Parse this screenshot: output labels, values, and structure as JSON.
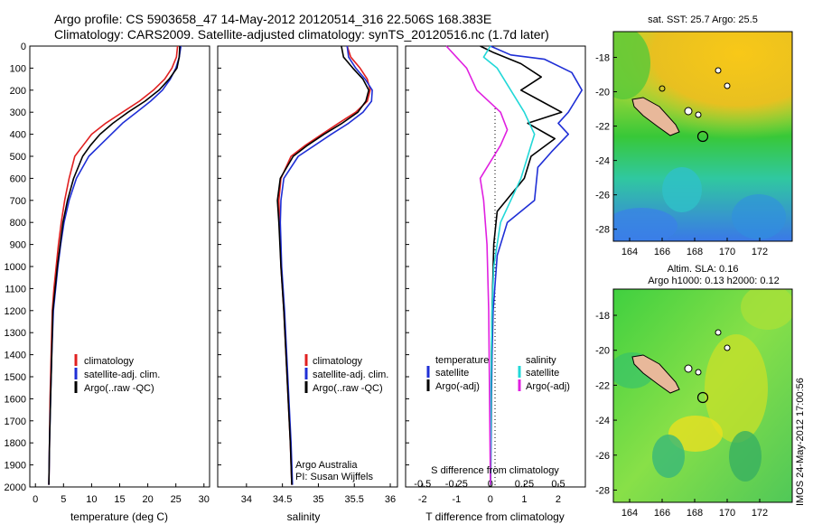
{
  "header": {
    "line1": "Argo profile: CS 5903658_47 14-May-2012 20120514_316 22.506S 168.383E",
    "line2": "Climatology: CARS2009. Satellite-adjusted climatology: synTS_20120516.nc (1.7d later)"
  },
  "colors": {
    "climatology": "#e02020",
    "satellite": "#1f2fd6",
    "argo": "#000000",
    "sal_sat": "#22d8d8",
    "sal_argo": "#e020e0",
    "land": "#e8b89a"
  },
  "side_stamp": "IMOS 24-May-2012 17:00:56",
  "chart_data": [
    {
      "type": "line",
      "title": "",
      "xlabel": "temperature (deg C)",
      "ylabel": "",
      "xlim": [
        -1,
        31
      ],
      "ylim": [
        2000,
        0
      ],
      "x_ticks": [
        "0",
        "5",
        "10",
        "15",
        "20",
        "25",
        "30"
      ],
      "y_ticks": [
        "0",
        "100",
        "200",
        "300",
        "400",
        "500",
        "600",
        "700",
        "800",
        "900",
        "1000",
        "1100",
        "1200",
        "1300",
        "1400",
        "1500",
        "1600",
        "1700",
        "1800",
        "1900",
        "2000"
      ],
      "legend": [
        "climatology",
        "satellite-adj. clim.",
        "Argo(..raw -QC)"
      ],
      "series": [
        {
          "name": "climatology",
          "color": "climatology",
          "x": [
            25.3,
            25.1,
            24.3,
            23.0,
            21.0,
            18.5,
            15.5,
            12.5,
            10.0,
            8.5,
            7.0,
            6.0,
            5.2,
            4.6,
            4.1,
            3.7,
            3.3,
            3.0,
            2.8,
            2.6,
            2.5,
            2.4
          ],
          "y": [
            0,
            50,
            100,
            150,
            200,
            250,
            300,
            350,
            400,
            450,
            500,
            600,
            700,
            800,
            900,
            1000,
            1100,
            1200,
            1400,
            1600,
            1800,
            1990
          ]
        },
        {
          "name": "satellite-adj. clim.",
          "color": "satellite",
          "x": [
            25.9,
            25.6,
            25.0,
            24.0,
            22.6,
            20.5,
            18.0,
            15.5,
            13.5,
            11.5,
            9.5,
            7.3,
            6.0,
            5.1,
            4.5,
            4.0,
            3.6,
            3.2,
            2.9,
            2.7,
            2.5,
            2.4
          ],
          "y": [
            0,
            50,
            100,
            150,
            200,
            250,
            300,
            350,
            400,
            450,
            500,
            600,
            700,
            800,
            900,
            1000,
            1100,
            1200,
            1400,
            1600,
            1800,
            1990
          ]
        },
        {
          "name": "Argo(..raw -QC)",
          "color": "argo",
          "x": [
            25.7,
            25.6,
            25.2,
            23.8,
            22.0,
            19.5,
            16.5,
            13.8,
            11.5,
            9.8,
            8.4,
            6.8,
            5.7,
            4.9,
            4.4,
            3.9,
            3.5,
            3.1,
            2.9,
            2.7,
            2.5,
            2.4
          ],
          "y": [
            0,
            50,
            100,
            150,
            200,
            250,
            300,
            350,
            400,
            450,
            500,
            600,
            700,
            800,
            900,
            1000,
            1100,
            1200,
            1400,
            1600,
            1800,
            1990
          ]
        }
      ]
    },
    {
      "type": "line",
      "title": "",
      "xlabel": "salinity",
      "ylabel": "",
      "xlim": [
        33.6,
        36.1
      ],
      "ylim": [
        2000,
        0
      ],
      "x_ticks": [
        "34",
        "34.5",
        "35",
        "35.5",
        "36"
      ],
      "legend": [
        "climatology",
        "satellite-adj. clim.",
        "Argo(..raw -QC)"
      ],
      "annotation": [
        "Argo Australia",
        "PI: Susan Wijffels"
      ],
      "series": [
        {
          "name": "climatology",
          "color": "climatology",
          "x": [
            35.4,
            35.45,
            35.58,
            35.68,
            35.72,
            35.68,
            35.52,
            35.28,
            35.05,
            34.82,
            34.62,
            34.48,
            34.45,
            34.46,
            34.48,
            34.52,
            34.55,
            34.58,
            34.61,
            34.63
          ],
          "y": [
            0,
            50,
            100,
            150,
            200,
            250,
            300,
            350,
            400,
            450,
            500,
            600,
            700,
            800,
            1000,
            1200,
            1400,
            1600,
            1800,
            1990
          ]
        },
        {
          "name": "satellite-adj. clim.",
          "color": "satellite",
          "x": [
            35.4,
            35.42,
            35.52,
            35.65,
            35.75,
            35.74,
            35.62,
            35.42,
            35.18,
            34.95,
            34.72,
            34.52,
            34.48,
            34.47,
            34.49,
            34.53,
            34.56,
            34.59,
            34.62,
            34.64
          ],
          "y": [
            0,
            50,
            100,
            150,
            200,
            250,
            300,
            350,
            400,
            450,
            500,
            600,
            700,
            800,
            1000,
            1200,
            1400,
            1600,
            1800,
            1990
          ]
        },
        {
          "name": "Argo(..raw -QC)",
          "color": "argo",
          "x": [
            35.32,
            35.35,
            35.48,
            35.62,
            35.7,
            35.66,
            35.55,
            35.33,
            35.08,
            34.85,
            34.65,
            34.47,
            34.43,
            34.45,
            34.48,
            34.52,
            34.55,
            34.58,
            34.61,
            34.63
          ],
          "y": [
            0,
            50,
            100,
            150,
            200,
            250,
            300,
            350,
            400,
            450,
            500,
            600,
            700,
            800,
            1000,
            1200,
            1400,
            1600,
            1800,
            1990
          ]
        }
      ]
    },
    {
      "type": "line",
      "title": "",
      "xlabel": "T difference from climatology",
      "xlabel_top": "S difference from climatology",
      "ylabel": "",
      "xlim": [
        -2.5,
        2.8
      ],
      "ylim": [
        2000,
        0
      ],
      "x_ticks": [
        "-2",
        "-1",
        "0",
        "1",
        "2"
      ],
      "x_ticks_S": [
        "-0.5",
        "-0.25",
        "0",
        "0.25",
        "0.5"
      ],
      "legend_temperature": {
        "title": "temperature",
        "items": [
          "satellite",
          "Argo(-adj)"
        ]
      },
      "legend_salinity": {
        "title": "salinity",
        "items": [
          "satellite",
          "Argo(-adj)"
        ]
      },
      "series": [
        {
          "name": "temperature satellite",
          "color": "satellite",
          "x": [
            0.0,
            0.6,
            1.6,
            2.4,
            2.7,
            2.3,
            2.0,
            2.3,
            1.8,
            1.4,
            1.3,
            0.5,
            0.2,
            0.08,
            0.05,
            0.03,
            0.02,
            0.01
          ],
          "y": [
            0,
            40,
            60,
            120,
            200,
            300,
            350,
            400,
            480,
            550,
            700,
            800,
            950,
            1200,
            1400,
            1600,
            1800,
            1990
          ]
        },
        {
          "name": "temperature Argo(-adj)",
          "color": "argo",
          "x": [
            -0.3,
            0.1,
            0.9,
            1.5,
            0.9,
            1.5,
            2.1,
            1.1,
            1.9,
            1.2,
            1.0,
            0.2,
            0.1,
            0.05,
            0.03,
            0.02,
            0.01,
            0.0
          ],
          "y": [
            0,
            30,
            80,
            140,
            200,
            250,
            300,
            350,
            420,
            500,
            600,
            750,
            900,
            1200,
            1400,
            1600,
            1800,
            1990
          ]
        },
        {
          "name": "salinity satellite",
          "color": "sal_sat",
          "x": [
            0.0,
            -0.2,
            0.2,
            0.6,
            1.0,
            1.3,
            1.2,
            1.1,
            0.9,
            0.6,
            0.3,
            0.1,
            0.05,
            0.02,
            0.0
          ],
          "y": [
            0,
            50,
            100,
            200,
            300,
            400,
            450,
            500,
            600,
            700,
            800,
            1000,
            1200,
            1500,
            1990
          ]
        },
        {
          "name": "salinity Argo(-adj)",
          "color": "sal_argo",
          "x": [
            -1.3,
            -1.0,
            -0.7,
            -0.4,
            0.3,
            0.5,
            0.3,
            0.1,
            -0.1,
            -0.3,
            -0.2,
            -0.1,
            -0.05,
            0.0
          ],
          "y": [
            0,
            50,
            100,
            200,
            300,
            380,
            450,
            500,
            550,
            600,
            700,
            900,
            1200,
            1990
          ]
        }
      ]
    },
    {
      "type": "heatmap",
      "title": "sat. SST: 25.7 Argo: 25.5",
      "x_ticks": [
        "164",
        "166",
        "168",
        "170",
        "172"
      ],
      "y_ticks": [
        "-18",
        "-20",
        "-22",
        "-24",
        "-26",
        "-28"
      ],
      "marker": {
        "lon": 168.38,
        "lat": -22.5
      }
    },
    {
      "type": "heatmap",
      "title": "Altim. SLA: 0.16",
      "subtitle": "Argo h1000: 0.13 h2000: 0.12",
      "x_ticks": [
        "164",
        "166",
        "168",
        "170",
        "172"
      ],
      "y_ticks": [
        "-18",
        "-20",
        "-22",
        "-24",
        "-26",
        "-28"
      ],
      "marker": {
        "lon": 168.38,
        "lat": -22.5
      }
    }
  ]
}
